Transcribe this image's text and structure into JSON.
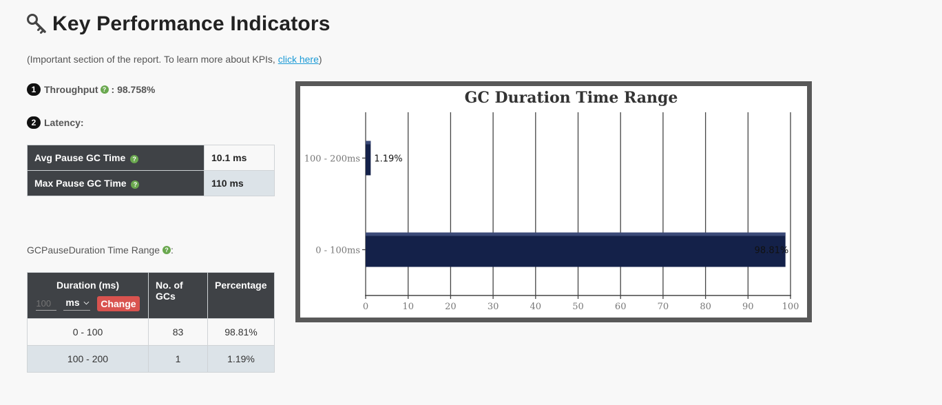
{
  "header": {
    "title": "Key Performance Indicators",
    "subtitle_prefix": "(Important section of the report. To learn more about KPIs, ",
    "subtitle_link": "click here",
    "subtitle_suffix": ")"
  },
  "kpi": {
    "throughput_num": "1",
    "throughput_label": "Throughput",
    "throughput_value": ": 98.758%",
    "latency_num": "2",
    "latency_label": "Latency:"
  },
  "latency_table": {
    "rows": [
      {
        "label": "Avg Pause GC Time",
        "value": "10.1 ms"
      },
      {
        "label": "Max Pause GC Time",
        "value": "110 ms"
      }
    ]
  },
  "range_section": {
    "label": "GCPauseDuration Time Range",
    "label_suffix": ":"
  },
  "duration_table": {
    "headers": {
      "duration": "Duration (ms)",
      "count": "No. of GCs",
      "percentage": "Percentage"
    },
    "controls": {
      "input_placeholder": "100",
      "unit": "ms",
      "change_label": "Change"
    },
    "rows": [
      {
        "duration": "0 - 100",
        "count": "83",
        "percentage": "98.81%"
      },
      {
        "duration": "100 - 200",
        "count": "1",
        "percentage": "1.19%"
      }
    ]
  },
  "icons": {
    "title_icon": "key-icon",
    "help_icon": "question-circle-icon",
    "dropdown_icon": "chevron-down-icon"
  },
  "colors": {
    "bar_fill": "#142149",
    "help_icon": "#6aa84f",
    "change_button": "#d9534f",
    "table_header": "#3f4246",
    "link": "#1a9ad6"
  },
  "chart_data": {
    "type": "bar",
    "orientation": "horizontal",
    "title": "GC Duration Time Range",
    "categories": [
      "100 - 200ms",
      "0 - 100ms"
    ],
    "values": [
      1.19,
      98.81
    ],
    "data_labels": [
      "1.19%",
      "98.81%"
    ],
    "xlim": [
      0,
      100
    ],
    "xticks": [
      "0",
      "10",
      "20",
      "30",
      "40",
      "50",
      "60",
      "70",
      "80",
      "90",
      "100"
    ],
    "grid": true,
    "legend": "none"
  }
}
